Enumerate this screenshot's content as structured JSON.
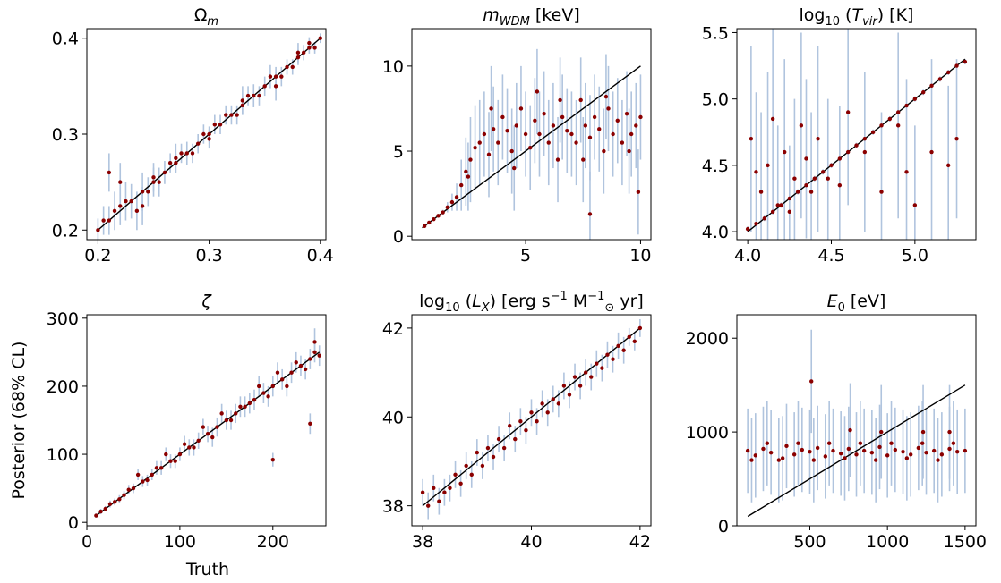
{
  "figure": {
    "ylabel": "Posterior (68% CL)",
    "xlabel": "Truth",
    "point_color": "#8b0000",
    "errorbar_color": "#b0c4de",
    "line_color": "#000000"
  },
  "chart_data": [
    {
      "type": "scatter",
      "title": "Ω_m",
      "title_parts": [
        {
          "t": "Ω"
        },
        {
          "t": "m",
          "sub": true,
          "italic": true
        }
      ],
      "xlim": [
        0.19,
        0.405
      ],
      "ylim": [
        0.19,
        0.41
      ],
      "xticks": [
        0.2,
        0.3,
        0.4
      ],
      "xtick_labels": [
        "0.2",
        "0.3",
        "0.4"
      ],
      "yticks": [
        0.2,
        0.3,
        0.4
      ],
      "ytick_labels": [
        "0.2",
        "0.3",
        "0.4"
      ],
      "identity_line": [
        [
          0.2,
          0.2
        ],
        [
          0.4,
          0.4
        ]
      ],
      "x": [
        0.2,
        0.21,
        0.22,
        0.23,
        0.24,
        0.25,
        0.26,
        0.27,
        0.28,
        0.29,
        0.3,
        0.31,
        0.32,
        0.33,
        0.34,
        0.35,
        0.36,
        0.37,
        0.38,
        0.39,
        0.4,
        0.205,
        0.215,
        0.225,
        0.235,
        0.245,
        0.255,
        0.265,
        0.275,
        0.285,
        0.295,
        0.305,
        0.315,
        0.325,
        0.335,
        0.345,
        0.355,
        0.365,
        0.375,
        0.385,
        0.395,
        0.21,
        0.22,
        0.24,
        0.25,
        0.27,
        0.3,
        0.33,
        0.36,
        0.38,
        0.39
      ],
      "y": [
        0.2,
        0.21,
        0.225,
        0.23,
        0.24,
        0.25,
        0.26,
        0.27,
        0.28,
        0.29,
        0.3,
        0.31,
        0.32,
        0.33,
        0.34,
        0.35,
        0.36,
        0.37,
        0.38,
        0.39,
        0.4,
        0.21,
        0.22,
        0.23,
        0.22,
        0.24,
        0.25,
        0.27,
        0.28,
        0.28,
        0.3,
        0.31,
        0.32,
        0.32,
        0.34,
        0.34,
        0.36,
        0.36,
        0.37,
        0.385,
        0.39,
        0.26,
        0.25,
        0.225,
        0.255,
        0.275,
        0.295,
        0.335,
        0.35,
        0.385,
        0.395
      ],
      "err": [
        0.012,
        0.015,
        0.02,
        0.018,
        0.02,
        0.015,
        0.012,
        0.01,
        0.012,
        0.01,
        0.008,
        0.01,
        0.01,
        0.01,
        0.012,
        0.01,
        0.01,
        0.008,
        0.008,
        0.006,
        0.005,
        0.015,
        0.02,
        0.02,
        0.02,
        0.015,
        0.015,
        0.01,
        0.01,
        0.01,
        0.01,
        0.01,
        0.01,
        0.01,
        0.01,
        0.01,
        0.012,
        0.01,
        0.008,
        0.008,
        0.006,
        0.02,
        0.02,
        0.02,
        0.015,
        0.015,
        0.01,
        0.015,
        0.015,
        0.01,
        0.006
      ]
    },
    {
      "type": "scatter",
      "title": "m_WDM [keV]",
      "title_parts": [
        {
          "t": "m",
          "italic": true
        },
        {
          "t": "WDM",
          "sub": true,
          "italic": true
        },
        {
          "t": " [keV]"
        }
      ],
      "xlim": [
        0.05,
        10.45
      ],
      "ylim": [
        -0.2,
        12.2
      ],
      "xticks": [
        5,
        10
      ],
      "xtick_labels": [
        "5",
        "10"
      ],
      "yticks": [
        0,
        5,
        10
      ],
      "ytick_labels": [
        "0",
        "5",
        "10"
      ],
      "identity_line": [
        [
          0.5,
          0.5
        ],
        [
          10,
          10
        ]
      ],
      "x": [
        0.6,
        0.8,
        1.0,
        1.2,
        1.4,
        1.6,
        1.8,
        2.0,
        2.2,
        2.4,
        2.6,
        2.8,
        3.0,
        3.2,
        3.4,
        3.6,
        3.8,
        4.0,
        4.2,
        4.4,
        4.6,
        4.8,
        5.0,
        5.2,
        5.4,
        5.6,
        5.8,
        6.0,
        6.2,
        6.4,
        6.6,
        6.8,
        7.0,
        7.2,
        7.4,
        7.6,
        7.8,
        8.0,
        8.2,
        8.4,
        8.6,
        8.8,
        9.0,
        9.2,
        9.4,
        9.6,
        9.8,
        10.0,
        2.5,
        3.5,
        4.5,
        5.5,
        6.5,
        7.5,
        8.5,
        9.5,
        7.8,
        9.9
      ],
      "y": [
        0.6,
        0.8,
        1.0,
        1.2,
        1.4,
        1.7,
        2.0,
        2.3,
        3.0,
        3.8,
        4.5,
        5.2,
        5.5,
        6.0,
        4.8,
        6.3,
        5.5,
        7.0,
        6.2,
        5.0,
        6.5,
        7.5,
        6.0,
        5.2,
        6.8,
        6.0,
        7.2,
        5.5,
        6.5,
        4.5,
        7.0,
        6.2,
        6.0,
        5.5,
        8.0,
        6.5,
        5.8,
        7.0,
        6.3,
        5.0,
        7.5,
        6.0,
        6.8,
        5.5,
        7.2,
        6.0,
        6.5,
        7.0,
        3.5,
        7.5,
        4.0,
        8.5,
        8.0,
        4.5,
        8.2,
        5.0,
        1.3,
        2.6
      ],
      "err": [
        0.05,
        0.06,
        0.08,
        0.1,
        0.15,
        0.3,
        0.5,
        0.8,
        1.5,
        2.0,
        2.5,
        2.5,
        2.5,
        2.5,
        2.5,
        2.5,
        2.5,
        2.5,
        2.5,
        2.5,
        2.5,
        2.5,
        2.5,
        2.5,
        2.5,
        2.5,
        2.5,
        2.5,
        2.5,
        2.5,
        2.5,
        2.5,
        2.5,
        2.5,
        2.5,
        2.5,
        2.5,
        2.5,
        2.5,
        2.5,
        2.5,
        2.5,
        2.5,
        2.5,
        2.5,
        2.5,
        2.5,
        2.5,
        2.0,
        2.5,
        2.5,
        2.5,
        2.5,
        2.5,
        2.5,
        2.5,
        2.5,
        2.5
      ]
    },
    {
      "type": "scatter",
      "title": "log10 (T_vir) [K]",
      "title_parts": [
        {
          "t": "log"
        },
        {
          "t": "10",
          "sub": true
        },
        {
          "t": " ("
        },
        {
          "t": "T",
          "italic": true
        },
        {
          "t": "vir",
          "sub": true,
          "italic": true
        },
        {
          "t": ") [K]"
        }
      ],
      "xlim": [
        3.935,
        5.365
      ],
      "ylim": [
        3.94,
        5.53
      ],
      "xticks": [
        4.0,
        4.5,
        5.0
      ],
      "xtick_labels": [
        "4.0",
        "4.5",
        "5.0"
      ],
      "yticks": [
        4.0,
        4.5,
        5.0,
        5.5
      ],
      "ytick_labels": [
        "4.0",
        "4.5",
        "5.0",
        "5.5"
      ],
      "identity_line": [
        [
          4.0,
          4.0
        ],
        [
          5.3,
          5.3
        ]
      ],
      "x": [
        4.0,
        4.05,
        4.1,
        4.15,
        4.2,
        4.25,
        4.3,
        4.35,
        4.4,
        4.45,
        4.5,
        4.55,
        4.6,
        4.65,
        4.7,
        4.75,
        4.8,
        4.85,
        4.9,
        4.95,
        5.0,
        5.05,
        5.1,
        5.15,
        5.2,
        5.25,
        5.3,
        4.02,
        4.08,
        4.12,
        4.18,
        4.22,
        4.28,
        4.32,
        4.38,
        4.42,
        4.48,
        4.6,
        4.7,
        4.8,
        4.9,
        5.0,
        5.1,
        5.2,
        5.25,
        4.05,
        4.15,
        4.25,
        4.35,
        4.55,
        4.95
      ],
      "y": [
        4.02,
        4.06,
        4.1,
        4.15,
        4.2,
        4.25,
        4.3,
        4.35,
        4.4,
        4.45,
        4.5,
        4.55,
        4.6,
        4.65,
        4.7,
        4.75,
        4.8,
        4.85,
        4.9,
        4.95,
        5.0,
        5.05,
        5.1,
        5.15,
        5.2,
        5.25,
        5.28,
        4.7,
        4.3,
        4.5,
        4.2,
        4.6,
        4.4,
        4.8,
        4.3,
        4.7,
        4.4,
        4.9,
        4.6,
        4.3,
        4.8,
        4.2,
        4.6,
        4.5,
        4.7,
        4.45,
        4.85,
        4.15,
        4.55,
        4.35,
        4.45
      ],
      "err": [
        0.02,
        0.02,
        0.02,
        0.02,
        0.02,
        0.02,
        0.02,
        0.02,
        0.02,
        0.02,
        0.02,
        0.02,
        0.02,
        0.02,
        0.02,
        0.02,
        0.02,
        0.02,
        0.02,
        0.02,
        0.02,
        0.02,
        0.02,
        0.02,
        0.02,
        0.02,
        0.02,
        0.7,
        0.6,
        0.7,
        0.6,
        0.7,
        0.6,
        0.7,
        0.6,
        0.7,
        0.6,
        0.7,
        0.6,
        0.6,
        0.7,
        0.6,
        0.7,
        0.6,
        0.6,
        0.6,
        0.7,
        0.5,
        0.6,
        0.6,
        0.7
      ]
    },
    {
      "type": "scatter",
      "title": "ζ",
      "title_parts": [
        {
          "t": "ζ",
          "italic": true
        }
      ],
      "xlim": [
        0,
        257
      ],
      "ylim": [
        -5,
        305
      ],
      "xticks": [
        0,
        100,
        200
      ],
      "xtick_labels": [
        "0",
        "100",
        "200"
      ],
      "yticks": [
        0,
        100,
        200,
        300
      ],
      "ytick_labels": [
        "0",
        "100",
        "200",
        "300"
      ],
      "identity_line": [
        [
          10,
          10
        ],
        [
          250,
          250
        ]
      ],
      "x": [
        10,
        20,
        30,
        40,
        50,
        60,
        70,
        80,
        90,
        100,
        110,
        120,
        130,
        140,
        150,
        160,
        170,
        180,
        190,
        200,
        210,
        220,
        230,
        240,
        250,
        15,
        25,
        35,
        45,
        55,
        65,
        75,
        85,
        95,
        105,
        115,
        125,
        135,
        145,
        155,
        165,
        175,
        185,
        195,
        205,
        215,
        225,
        235,
        245,
        200,
        240,
        245
      ],
      "y": [
        10,
        20,
        30,
        40,
        50,
        60,
        70,
        80,
        90,
        100,
        110,
        120,
        130,
        140,
        150,
        160,
        170,
        180,
        190,
        200,
        210,
        220,
        230,
        240,
        245,
        16,
        27,
        34,
        48,
        70,
        62,
        80,
        100,
        90,
        115,
        110,
        140,
        125,
        160,
        150,
        170,
        175,
        200,
        185,
        220,
        200,
        235,
        225,
        265,
        92,
        145,
        250
      ],
      "err": [
        3,
        4,
        5,
        6,
        7,
        8,
        8,
        10,
        10,
        10,
        12,
        12,
        12,
        14,
        14,
        14,
        15,
        15,
        15,
        15,
        15,
        15,
        15,
        15,
        15,
        4,
        5,
        6,
        7,
        8,
        8,
        10,
        10,
        10,
        12,
        12,
        12,
        14,
        14,
        14,
        15,
        15,
        15,
        15,
        15,
        15,
        15,
        15,
        20,
        10,
        15,
        15
      ]
    },
    {
      "type": "scatter",
      "title": "log10 (L_X) [erg s^-1 M_⊙^-1 yr]",
      "title_parts": [
        {
          "t": "log"
        },
        {
          "t": "10",
          "sub": true
        },
        {
          "t": " ("
        },
        {
          "t": "L",
          "italic": true
        },
        {
          "t": "X",
          "sub": true,
          "italic": true
        },
        {
          "t": ") [erg s"
        },
        {
          "t": "−1",
          "sup": true
        },
        {
          "t": " M"
        },
        {
          "t": "−1",
          "sup": true
        },
        {
          "t": "⊙",
          "sub": true
        },
        {
          "t": " yr]"
        }
      ],
      "xlim": [
        37.8,
        42.2
      ],
      "ylim": [
        37.55,
        42.3
      ],
      "xticks": [
        38,
        40,
        42
      ],
      "xtick_labels": [
        "38",
        "40",
        "42"
      ],
      "yticks": [
        38,
        40,
        42
      ],
      "ytick_labels": [
        "38",
        "40",
        "42"
      ],
      "identity_line": [
        [
          38,
          38
        ],
        [
          42,
          42
        ]
      ],
      "x": [
        38.0,
        38.2,
        38.4,
        38.6,
        38.8,
        39.0,
        39.2,
        39.4,
        39.6,
        39.8,
        40.0,
        40.2,
        40.4,
        40.6,
        40.8,
        41.0,
        41.2,
        41.4,
        41.6,
        41.8,
        42.0,
        38.1,
        38.3,
        38.5,
        38.7,
        38.9,
        39.1,
        39.3,
        39.5,
        39.7,
        39.9,
        40.1,
        40.3,
        40.5,
        40.7,
        40.9,
        41.1,
        41.3,
        41.5,
        41.7,
        41.9
      ],
      "y": [
        38.3,
        38.4,
        38.3,
        38.7,
        38.9,
        39.2,
        39.3,
        39.5,
        39.8,
        39.9,
        40.1,
        40.3,
        40.4,
        40.7,
        40.9,
        41.0,
        41.2,
        41.4,
        41.6,
        41.8,
        42.0,
        38.0,
        38.1,
        38.4,
        38.5,
        38.7,
        38.9,
        39.1,
        39.3,
        39.5,
        39.7,
        39.9,
        40.1,
        40.3,
        40.5,
        40.7,
        40.9,
        41.1,
        41.3,
        41.5,
        41.7
      ],
      "err": [
        0.3,
        0.3,
        0.3,
        0.3,
        0.3,
        0.3,
        0.3,
        0.3,
        0.3,
        0.3,
        0.3,
        0.3,
        0.3,
        0.3,
        0.3,
        0.3,
        0.3,
        0.3,
        0.3,
        0.2,
        0.2,
        0.3,
        0.3,
        0.3,
        0.3,
        0.3,
        0.3,
        0.3,
        0.3,
        0.3,
        0.3,
        0.3,
        0.3,
        0.3,
        0.3,
        0.3,
        0.3,
        0.3,
        0.3,
        0.3,
        0.2
      ]
    },
    {
      "type": "scatter",
      "title": "E_0 [eV]",
      "title_parts": [
        {
          "t": "E",
          "italic": true
        },
        {
          "t": "0",
          "sub": true
        },
        {
          "t": " [eV]"
        }
      ],
      "xlim": [
        30,
        1570
      ],
      "ylim": [
        0,
        2250
      ],
      "xticks": [
        500,
        1000,
        1500
      ],
      "xtick_labels": [
        "500",
        "1000",
        "1500"
      ],
      "yticks": [
        0,
        1000,
        2000
      ],
      "ytick_labels": [
        "0",
        "1000",
        "2000"
      ],
      "identity_line": [
        [
          100,
          100
        ],
        [
          1500,
          1500
        ]
      ],
      "x": [
        100,
        150,
        200,
        250,
        300,
        350,
        400,
        450,
        500,
        550,
        600,
        650,
        700,
        750,
        800,
        850,
        900,
        950,
        1000,
        1050,
        1100,
        1150,
        1200,
        1250,
        1300,
        1350,
        1400,
        1450,
        1500,
        125,
        225,
        325,
        425,
        525,
        625,
        725,
        825,
        925,
        1025,
        1125,
        1225,
        1325,
        1425,
        510,
        760,
        960,
        1230,
        1400
      ],
      "y": [
        800,
        750,
        820,
        780,
        700,
        850,
        760,
        810,
        790,
        830,
        740,
        800,
        770,
        820,
        760,
        800,
        780,
        840,
        750,
        810,
        790,
        760,
        830,
        780,
        800,
        760,
        820,
        790,
        800,
        700,
        880,
        720,
        880,
        700,
        880,
        720,
        880,
        700,
        880,
        720,
        880,
        700,
        880,
        1540,
        1020,
        1000,
        1000,
        1000
      ],
      "err": [
        450,
        450,
        450,
        450,
        450,
        450,
        450,
        450,
        450,
        450,
        450,
        450,
        450,
        450,
        450,
        450,
        450,
        450,
        450,
        450,
        450,
        450,
        450,
        450,
        450,
        450,
        450,
        450,
        450,
        450,
        450,
        450,
        450,
        450,
        450,
        450,
        450,
        450,
        450,
        450,
        450,
        450,
        450,
        550,
        500,
        500,
        500,
        500
      ]
    }
  ]
}
